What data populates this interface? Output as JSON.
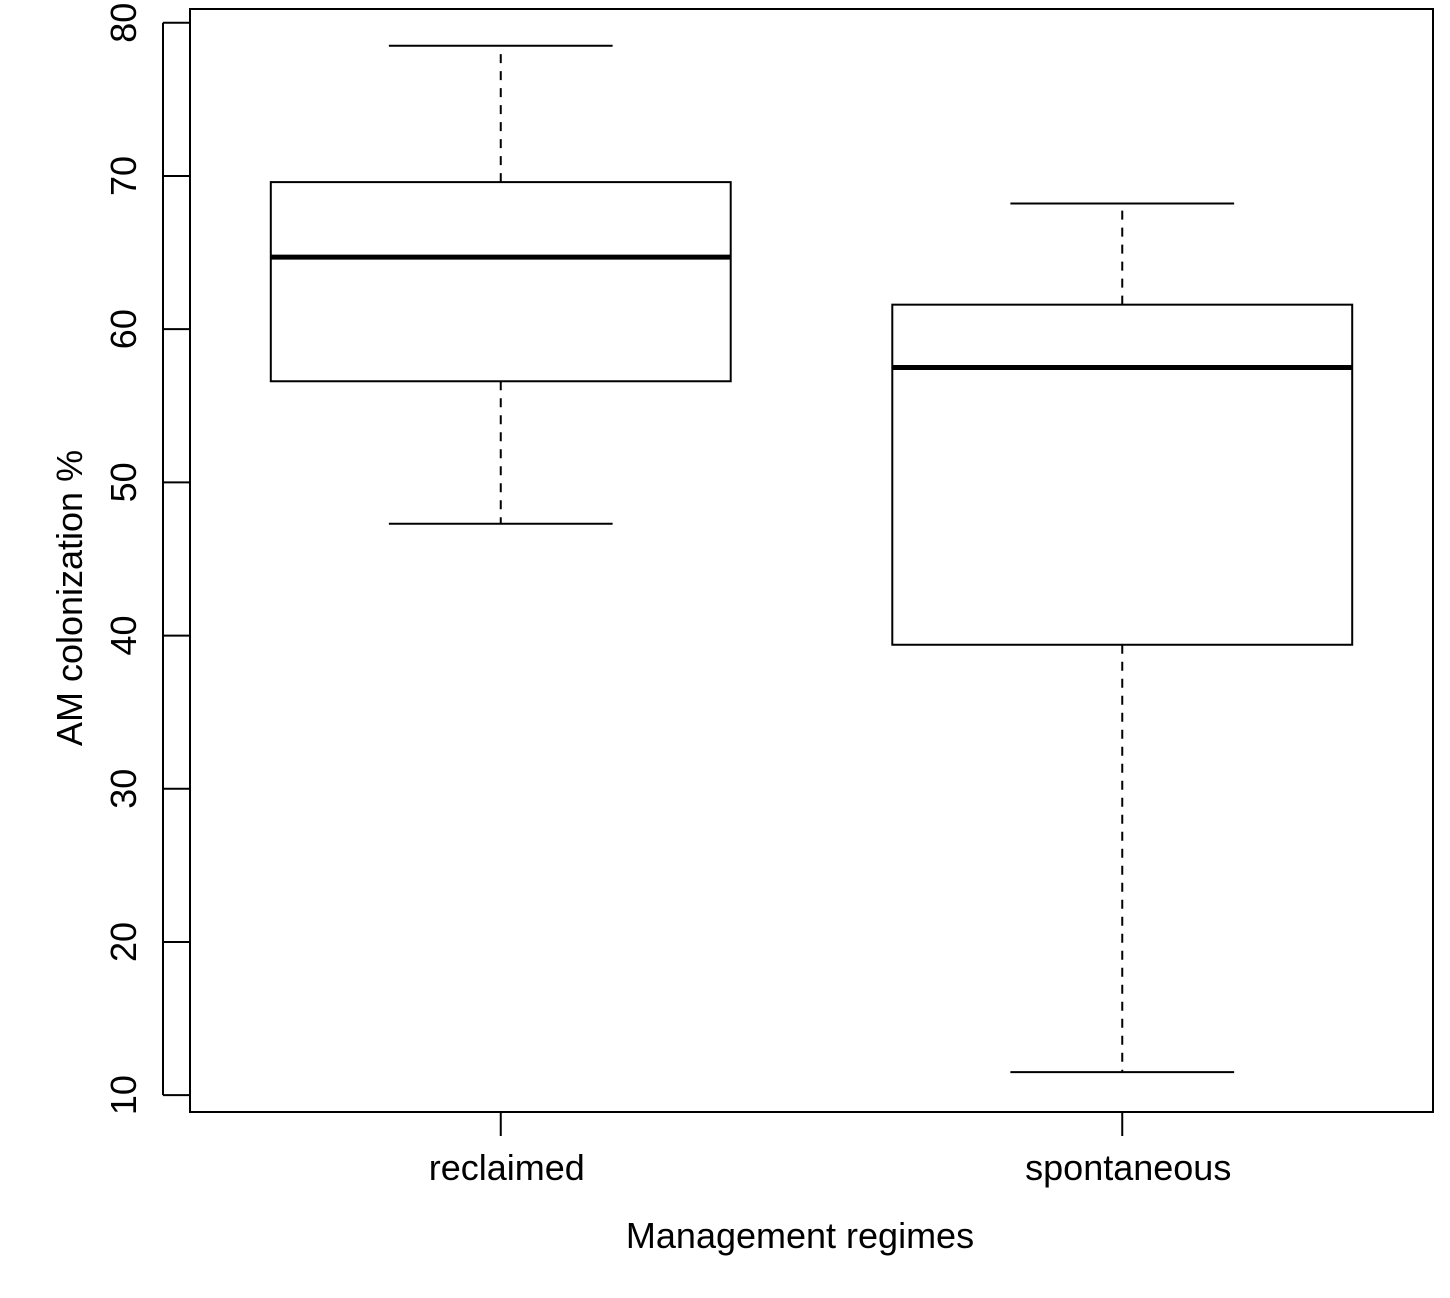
{
  "chart_data": {
    "type": "boxplot",
    "title": "",
    "xlabel": "Management regimes",
    "ylabel": "AM colonization %",
    "ylim": [
      8.9,
      80.9
    ],
    "yticks": [
      10,
      20,
      30,
      40,
      50,
      60,
      70,
      80
    ],
    "categories": [
      "reclaimed",
      "spontaneous"
    ],
    "boxes": [
      {
        "category": "reclaimed",
        "whisker_low": 47.3,
        "q1": 56.6,
        "median": 64.7,
        "q3": 69.6,
        "whisker_high": 78.5
      },
      {
        "category": "spontaneous",
        "whisker_low": 11.5,
        "q1": 39.4,
        "median": 57.5,
        "q3": 61.6,
        "whisker_high": 68.2
      }
    ],
    "grid": false,
    "legend": "none"
  }
}
